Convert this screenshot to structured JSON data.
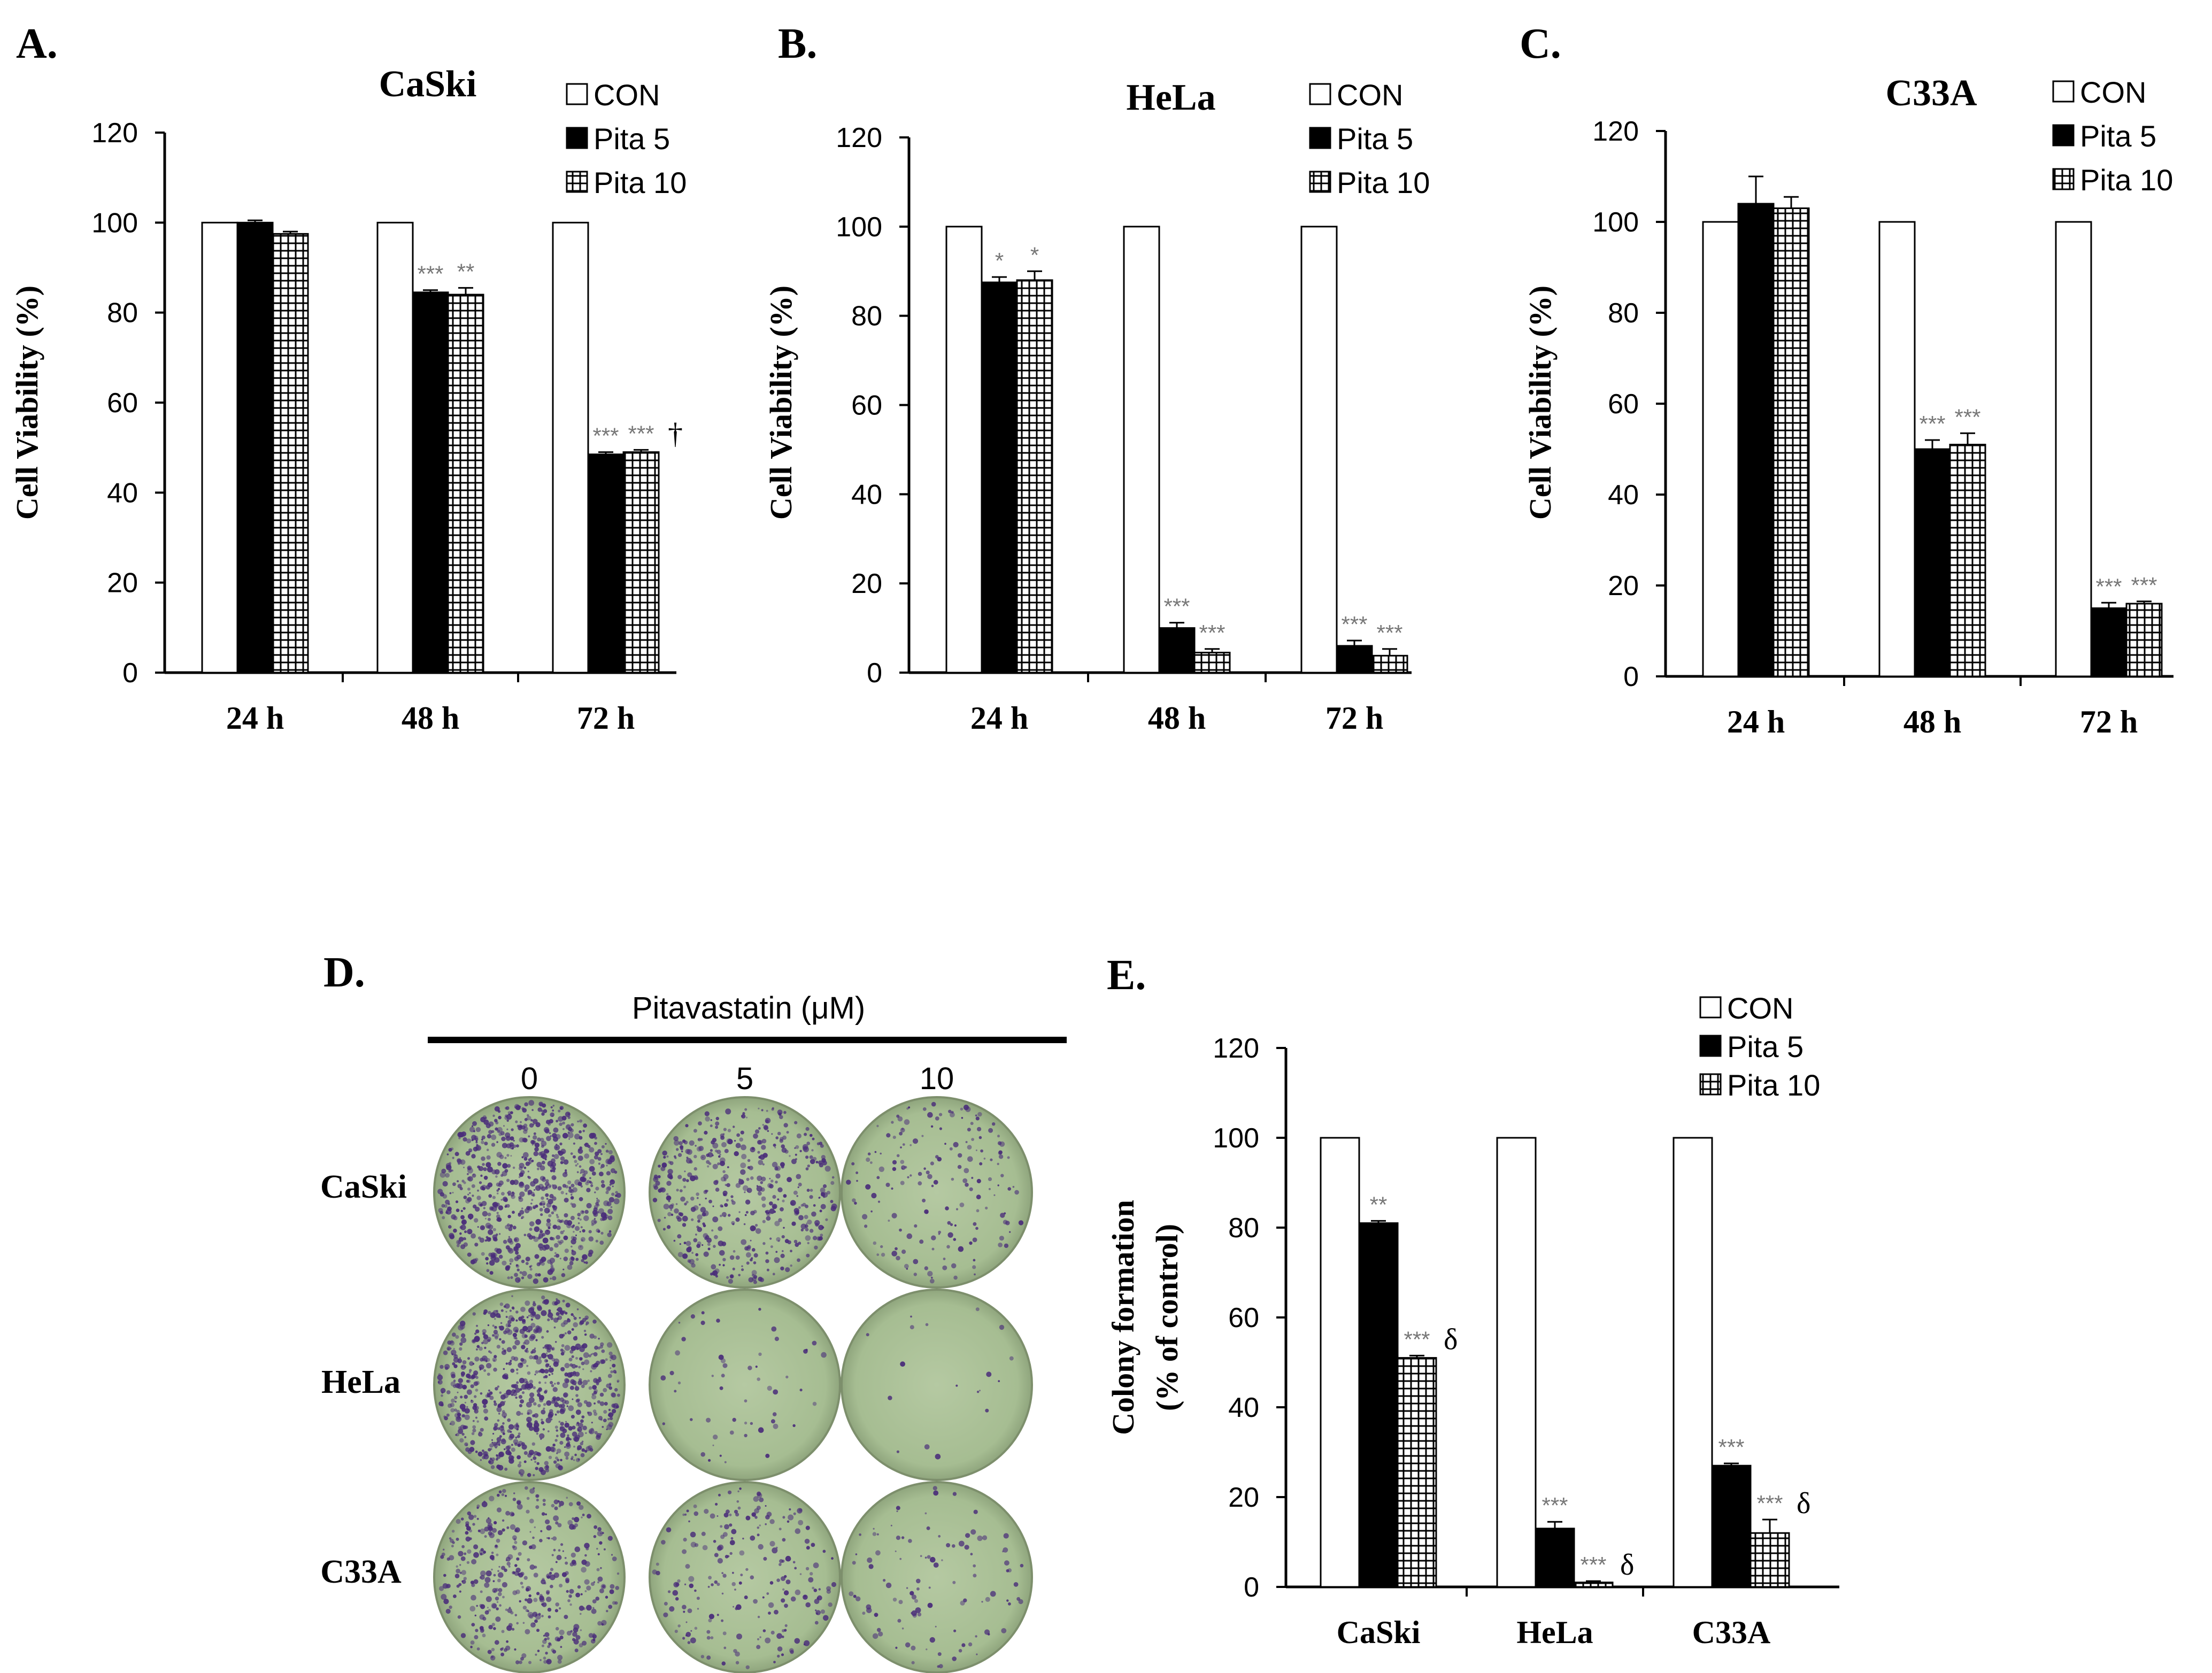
{
  "chart_data": [
    {
      "panel": "A.",
      "type": "bar",
      "title": "CaSki",
      "ylabel": "Cell Viability (%)",
      "xlabel": "",
      "ylim": [
        0,
        120
      ],
      "yticks": [
        "0",
        "20",
        "40",
        "60",
        "80",
        "100",
        "120"
      ],
      "categories": [
        "24 h",
        "48 h",
        "72 h"
      ],
      "series": [
        {
          "name": "CON",
          "values": [
            100,
            100,
            100
          ],
          "errors": [
            0,
            0,
            0
          ],
          "marks": [
            "",
            "",
            ""
          ],
          "suffix": [
            "",
            "",
            ""
          ]
        },
        {
          "name": "Pita 5",
          "values": [
            100,
            84.5,
            48.5
          ],
          "errors": [
            0.5,
            0.5,
            0.5
          ],
          "marks": [
            "",
            "***",
            "***"
          ],
          "suffix": [
            "",
            "",
            ""
          ]
        },
        {
          "name": "Pita 10",
          "values": [
            97.5,
            84,
            49
          ],
          "errors": [
            0.5,
            1.5,
            0.5
          ],
          "marks": [
            "",
            "**",
            "***"
          ],
          "suffix": [
            "",
            "",
            "†"
          ]
        }
      ],
      "legend": [
        "CON",
        "Pita 5",
        "Pita 10"
      ]
    },
    {
      "panel": "B.",
      "type": "bar",
      "title": "HeLa",
      "ylabel": "Cell Viability (%)",
      "xlabel": "",
      "ylim": [
        0,
        120
      ],
      "yticks": [
        "0",
        "20",
        "40",
        "60",
        "80",
        "100",
        "120"
      ],
      "categories": [
        "24 h",
        "48 h",
        "72 h"
      ],
      "series": [
        {
          "name": "CON",
          "values": [
            100,
            100,
            100
          ],
          "errors": [
            0,
            0,
            0
          ],
          "marks": [
            "",
            "",
            ""
          ],
          "suffix": [
            "",
            "",
            ""
          ]
        },
        {
          "name": "Pita 5",
          "values": [
            87.5,
            10,
            6
          ],
          "errors": [
            1.2,
            1.2,
            1.2
          ],
          "marks": [
            "*",
            "***",
            "***"
          ],
          "suffix": [
            "",
            "",
            ""
          ]
        },
        {
          "name": "Pita 10",
          "values": [
            88,
            4.5,
            3.8
          ],
          "errors": [
            2,
            0.8,
            1.5
          ],
          "marks": [
            "*",
            "***",
            "***"
          ],
          "suffix": [
            "",
            "",
            ""
          ]
        }
      ],
      "legend": [
        "CON",
        "Pita 5",
        "Pita 10"
      ]
    },
    {
      "panel": "C.",
      "type": "bar",
      "title": "C33A",
      "ylabel": "Cell Viability (%)",
      "xlabel": "",
      "ylim": [
        0,
        120
      ],
      "yticks": [
        "0",
        "20",
        "40",
        "60",
        "80",
        "100",
        "120"
      ],
      "categories": [
        "24 h",
        "48 h",
        "72 h"
      ],
      "series": [
        {
          "name": "CON",
          "values": [
            100,
            100,
            100
          ],
          "errors": [
            0,
            0,
            0
          ],
          "marks": [
            "",
            "",
            ""
          ],
          "suffix": [
            "",
            "",
            ""
          ]
        },
        {
          "name": "Pita 5",
          "values": [
            104,
            50,
            15
          ],
          "errors": [
            6,
            2,
            1.2
          ],
          "marks": [
            "",
            "***",
            "***"
          ],
          "suffix": [
            "",
            "",
            ""
          ]
        },
        {
          "name": "Pita 10",
          "values": [
            103,
            51,
            16
          ],
          "errors": [
            2.5,
            2.5,
            0.5
          ],
          "marks": [
            "",
            "***",
            "***"
          ],
          "suffix": [
            "",
            "",
            ""
          ]
        }
      ],
      "legend": [
        "CON",
        "Pita 5",
        "Pita 10"
      ]
    },
    {
      "panel": "E.",
      "type": "bar",
      "title": "",
      "ylabel_lines": [
        "Colony formation",
        "(% of control)"
      ],
      "xlabel": "",
      "ylim": [
        0,
        120
      ],
      "yticks": [
        "0",
        "20",
        "40",
        "60",
        "80",
        "100",
        "120"
      ],
      "categories": [
        "CaSki",
        "HeLa",
        "C33A"
      ],
      "series": [
        {
          "name": "CON",
          "values": [
            100,
            100,
            100
          ],
          "errors": [
            0,
            0,
            0
          ],
          "marks": [
            "",
            "",
            ""
          ],
          "suffix": [
            "",
            "",
            ""
          ]
        },
        {
          "name": "Pita 5",
          "values": [
            81,
            13,
            27
          ],
          "errors": [
            0.5,
            1.5,
            0.5
          ],
          "marks": [
            "**",
            "***",
            "***"
          ],
          "suffix": [
            "",
            "",
            ""
          ]
        },
        {
          "name": "Pita 10",
          "values": [
            51,
            1,
            12
          ],
          "errors": [
            0.5,
            0.3,
            3
          ],
          "marks": [
            "***",
            "***",
            "***"
          ],
          "suffix": [
            "δ",
            "δ",
            "δ"
          ]
        }
      ],
      "legend": [
        "CON",
        "Pita 5",
        "Pita 10"
      ]
    }
  ],
  "panel_d": {
    "panel": "D.",
    "header": "Pitavastatin  (μM)",
    "doses": [
      "0",
      "5",
      "10"
    ],
    "rows": [
      "CaSki",
      "HeLa",
      "C33A"
    ],
    "colony_density": [
      [
        0.9,
        0.55,
        0.2
      ],
      [
        0.95,
        0.06,
        0.02
      ],
      [
        0.5,
        0.25,
        0.12
      ]
    ],
    "stain_color": "#4a2d7a",
    "plate_color": "#a8bf94"
  }
}
